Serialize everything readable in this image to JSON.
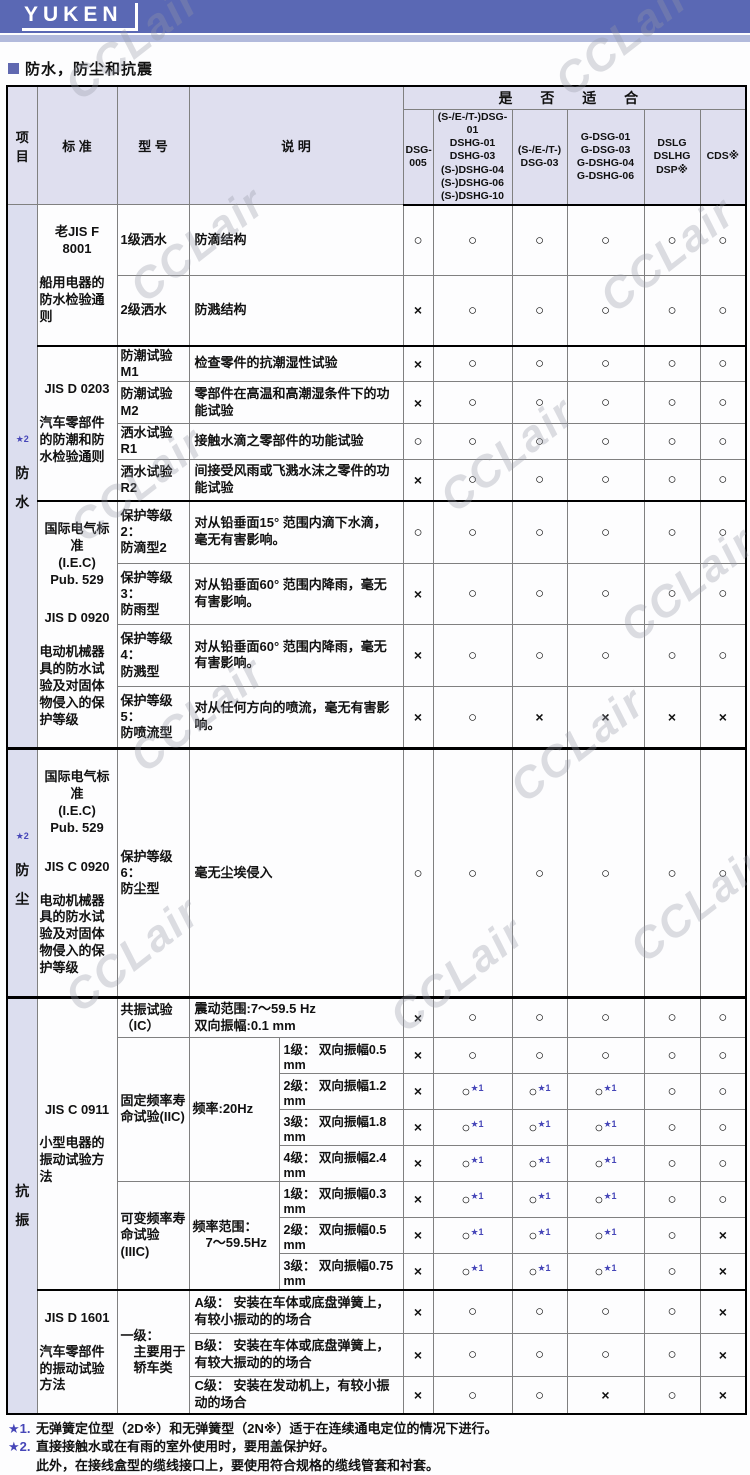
{
  "banner": {
    "logo": "YUKEN"
  },
  "section_title": "防水，防尘和抗震",
  "watermark": "CCLair",
  "colors": {
    "banner_blue": "#5a68b4",
    "banner_light": "#b2badc",
    "header_bg": "#dfdfef",
    "star_blue": "#4646b8"
  },
  "t": {
    "h": {
      "item": "项\n目",
      "standard": "标  准",
      "model": "型  号",
      "description": "说  明",
      "suitable": "是 否 适 合"
    },
    "cols": [
      "DSG-\n005",
      "(S-/E-/T-)DSG-01\nDSHG-01\nDSHG-03\n(S-)DSHG-04\n(S-)DSHG-06\n(S-)DSHG-10",
      "(S-/E-/T-)\nDSG-03",
      "G-DSG-01\nG-DSG-03\nG-DSHG-04\nG-DSHG-06",
      "DSLG\nDSLHG\nDSP※",
      "CDS※"
    ],
    "item_water": {
      "note": "★2",
      "label": "防\n水"
    },
    "item_dust": {
      "note": "★2",
      "label": "防\n尘"
    },
    "item_vib": {
      "label": "抗\n振"
    },
    "std": {
      "f8001": {
        "code": "老JIS F 8001",
        "desc": "船用电器的防水检验通则"
      },
      "d0203": {
        "code": "JIS D 0203",
        "desc": "汽车零部件的防潮和防水检验通则"
      },
      "d0920": {
        "pre": "国际电气标准\n(I.E.C)\nPub. 529",
        "code": "JIS D 0920",
        "desc": "电动机械器具的防水试验及对固体物侵入的保护等级"
      },
      "c0920": {
        "pre": "国际电气标准\n(I.E.C)\nPub. 529",
        "code": "JIS C 0920",
        "desc": "电动机械器具的防水试验及对固体物侵入的保护等级"
      },
      "c0911": {
        "code": "JIS C 0911",
        "desc": "小型电器的振动试验方法"
      },
      "d1601": {
        "code": "JIS D 1601",
        "desc": "汽车零部件的振动试验方法"
      }
    },
    "rows": {
      "spray1": {
        "model": "1级洒水",
        "desc": "防滴结构",
        "m": [
          "O",
          "O",
          "O",
          "O",
          "O",
          "O"
        ]
      },
      "spray2": {
        "model": "2级洒水",
        "desc": "防溅结构",
        "m": [
          "X",
          "O",
          "O",
          "O",
          "O",
          "O"
        ]
      },
      "m1": {
        "model": "防潮试验M1",
        "desc": "检查零件的抗潮湿性试验",
        "m": [
          "X",
          "O",
          "O",
          "O",
          "O",
          "O"
        ]
      },
      "m2": {
        "model": "防潮试验M2",
        "desc": "零部件在高温和高潮湿条件下的功能试验",
        "m": [
          "X",
          "O",
          "O",
          "O",
          "O",
          "O"
        ]
      },
      "r1": {
        "model": "洒水试验R1",
        "desc": "接触水滴之零部件的功能试验",
        "m": [
          "O",
          "O",
          "O",
          "O",
          "O",
          "O"
        ]
      },
      "r2": {
        "model": "洒水试验R2",
        "desc": "间接受风雨或飞溅水沫之零件的功能试验",
        "m": [
          "X",
          "O",
          "O",
          "O",
          "O",
          "O"
        ]
      },
      "p2": {
        "model": "保护等级2：\n防滴型2",
        "desc": "对从铅垂面15° 范围内滴下水滴，毫无有害影响。",
        "m": [
          "O",
          "O",
          "O",
          "O",
          "O",
          "O"
        ]
      },
      "p3": {
        "model": "保护等级3：\n防雨型",
        "desc": "对从铅垂面60° 范围内降雨，毫无有害影响。",
        "m": [
          "X",
          "O",
          "O",
          "O",
          "O",
          "O"
        ]
      },
      "p4": {
        "model": "保护等级4：\n防溅型",
        "desc": "对从铅垂面60° 范围内降雨，毫无有害影响。",
        "m": [
          "X",
          "O",
          "O",
          "O",
          "O",
          "O"
        ]
      },
      "p5": {
        "model": "保护等级5：\n防喷流型",
        "desc": "对从任何方向的喷流，毫无有害影响。",
        "m": [
          "X",
          "O",
          "X",
          "X",
          "X",
          "X"
        ]
      },
      "p6": {
        "model": "保护等级6：\n防尘型",
        "desc": "毫无尘埃侵入",
        "m": [
          "O",
          "O",
          "O",
          "O",
          "O",
          "O"
        ]
      },
      "ic": {
        "model": "共振试验（IC）",
        "desc": "震动范围:7～59.5 Hz\n双向振幅:0.1 mm",
        "m": [
          "X",
          "O",
          "O",
          "O",
          "O",
          "O"
        ]
      },
      "iic": {
        "model": "固定频率寿命试验(IIC)",
        "freq": "频率:20Hz"
      },
      "iic1": {
        "desc": "1级： 双向振幅0.5 mm",
        "m": [
          "X",
          "O",
          "O",
          "O",
          "O",
          "O"
        ]
      },
      "iic2": {
        "desc": "2级： 双向振幅1.2 mm",
        "m": [
          "X",
          "O*1",
          "O*1",
          "O*1",
          "O",
          "O"
        ]
      },
      "iic3": {
        "desc": "3级： 双向振幅1.8 mm",
        "m": [
          "X",
          "O*1",
          "O*1",
          "O*1",
          "O",
          "O"
        ]
      },
      "iic4": {
        "desc": "4级： 双向振幅2.4 mm",
        "m": [
          "X",
          "O*1",
          "O*1",
          "O*1",
          "O",
          "O"
        ]
      },
      "iiic": {
        "model": "可变频率寿命试验(IIIC)",
        "freq": "频率范围：\n　7～59.5Hz"
      },
      "iiic1": {
        "desc": "1级： 双向振幅0.3 mm",
        "m": [
          "X",
          "O*1",
          "O*1",
          "O*1",
          "O",
          "O"
        ]
      },
      "iiic2": {
        "desc": "2级： 双向振幅0.5 mm",
        "m": [
          "X",
          "O*1",
          "O*1",
          "O*1",
          "O",
          "X"
        ]
      },
      "iiic3": {
        "desc": "3级： 双向振幅0.75 mm",
        "m": [
          "X",
          "O*1",
          "O*1",
          "O*1",
          "O",
          "X"
        ]
      },
      "d1601model": "一级：\n　主要用于\n　轿车类",
      "a": {
        "desc": "A级： 安装在车体或底盘弹簧上，有较小振动的的场合",
        "m": [
          "X",
          "O",
          "O",
          "O",
          "O",
          "X"
        ]
      },
      "b": {
        "desc": "B级： 安装在车体或底盘弹簧上，有较大振动的的场合",
        "m": [
          "X",
          "O",
          "O",
          "O",
          "O",
          "X"
        ]
      },
      "c": {
        "desc": "C级： 安装在发动机上，有较小振动的场合",
        "m": [
          "X",
          "O",
          "O",
          "X",
          "O",
          "X"
        ]
      }
    }
  },
  "notes": [
    {
      "tag": "★1.",
      "text": "无弹簧定位型（2D※）和无弹簧型（2N※）适于在连续通电定位的情况下进行。"
    },
    {
      "tag": "★2.",
      "text": "直接接触水或在有雨的室外使用时，要用盖保护好。\n此外，在接线盒型的缆线接口上，要使用符合规格的缆线管套和衬套。"
    }
  ]
}
